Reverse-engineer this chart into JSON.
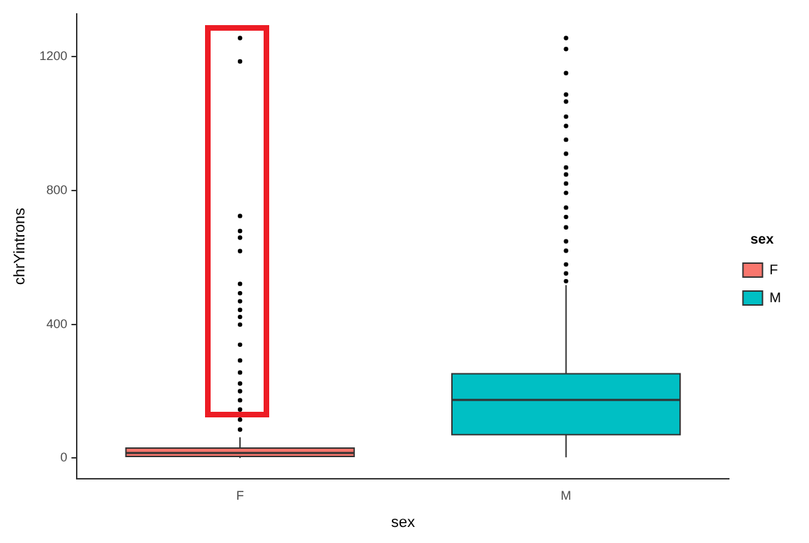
{
  "chart_data": {
    "type": "box",
    "xlabel": "sex",
    "ylabel": "chrYintrons",
    "legend_title": "sex",
    "legend": "right",
    "grid": false,
    "categories": [
      "F",
      "M"
    ],
    "ylim": [
      -62,
      1328
    ],
    "yticks": [
      0,
      400,
      800,
      1200
    ],
    "series": [
      {
        "name": "F",
        "color": "#f8766d",
        "boxes": [
          {
            "low": 0,
            "q1": 5,
            "median": 15,
            "q3": 30,
            "high": 62,
            "outliers": [
              1256,
              1186,
              724,
              679,
              659,
              619,
              521,
              493,
              469,
              443,
              422,
              399,
              339,
              292,
              256,
              223,
              200,
              173,
              145,
              115,
              85
            ]
          },
          null
        ]
      },
      {
        "name": "M",
        "color": "#00bfc4",
        "boxes": [
          null,
          {
            "low": 2,
            "q1": 70,
            "median": 174,
            "q3": 252,
            "high": 517,
            "outliers": [
              1256,
              1223,
              1151,
              1087,
              1066,
              1021,
              993,
              952,
              910,
              869,
              848,
              821,
              793,
              749,
              721,
              690,
              648,
              620,
              579,
              552,
              529
            ]
          }
        ]
      }
    ]
  }
}
